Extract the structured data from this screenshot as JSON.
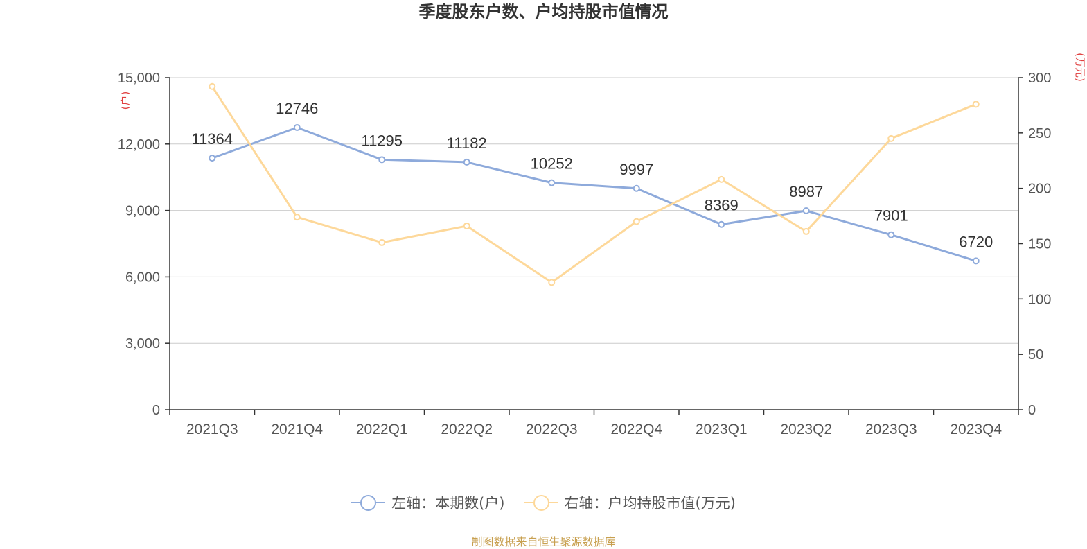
{
  "title": "季度股东户数、户均持股市值情况",
  "chart_data": {
    "type": "line",
    "categories": [
      "2021Q3",
      "2021Q4",
      "2022Q1",
      "2022Q2",
      "2022Q3",
      "2022Q4",
      "2023Q1",
      "2023Q2",
      "2023Q3",
      "2023Q4"
    ],
    "series": [
      {
        "name": "左轴：本期数(户)",
        "axis": "left",
        "color": "#8eaadb",
        "values": [
          11364,
          12746,
          11295,
          11182,
          10252,
          9997,
          8369,
          8987,
          7901,
          6720
        ],
        "show_labels": true
      },
      {
        "name": "右轴：户均持股市值(万元)",
        "axis": "right",
        "color": "#fdd89a",
        "values": [
          292,
          174,
          151,
          166,
          115,
          170,
          208,
          161,
          245,
          276
        ],
        "show_labels": false
      }
    ],
    "left_axis": {
      "unit": "(户)",
      "range": [
        0,
        15000
      ],
      "ticks": [
        0,
        3000,
        6000,
        9000,
        12000,
        15000
      ],
      "tick_labels": [
        "0",
        "3,000",
        "6,000",
        "9,000",
        "12,000",
        "15,000"
      ]
    },
    "right_axis": {
      "unit": "(万元)",
      "range": [
        0,
        300
      ],
      "ticks": [
        0,
        50,
        100,
        150,
        200,
        250,
        300
      ],
      "tick_labels": [
        "0",
        "50",
        "100",
        "150",
        "200",
        "250",
        "300"
      ]
    },
    "grid": true,
    "legend_position": "bottom"
  },
  "source": "制图数据来自恒生聚源数据库",
  "colors": {
    "unit_label": "#e04040",
    "axis": "#333333",
    "grid": "#cccccc",
    "tick_text": "#555555"
  }
}
